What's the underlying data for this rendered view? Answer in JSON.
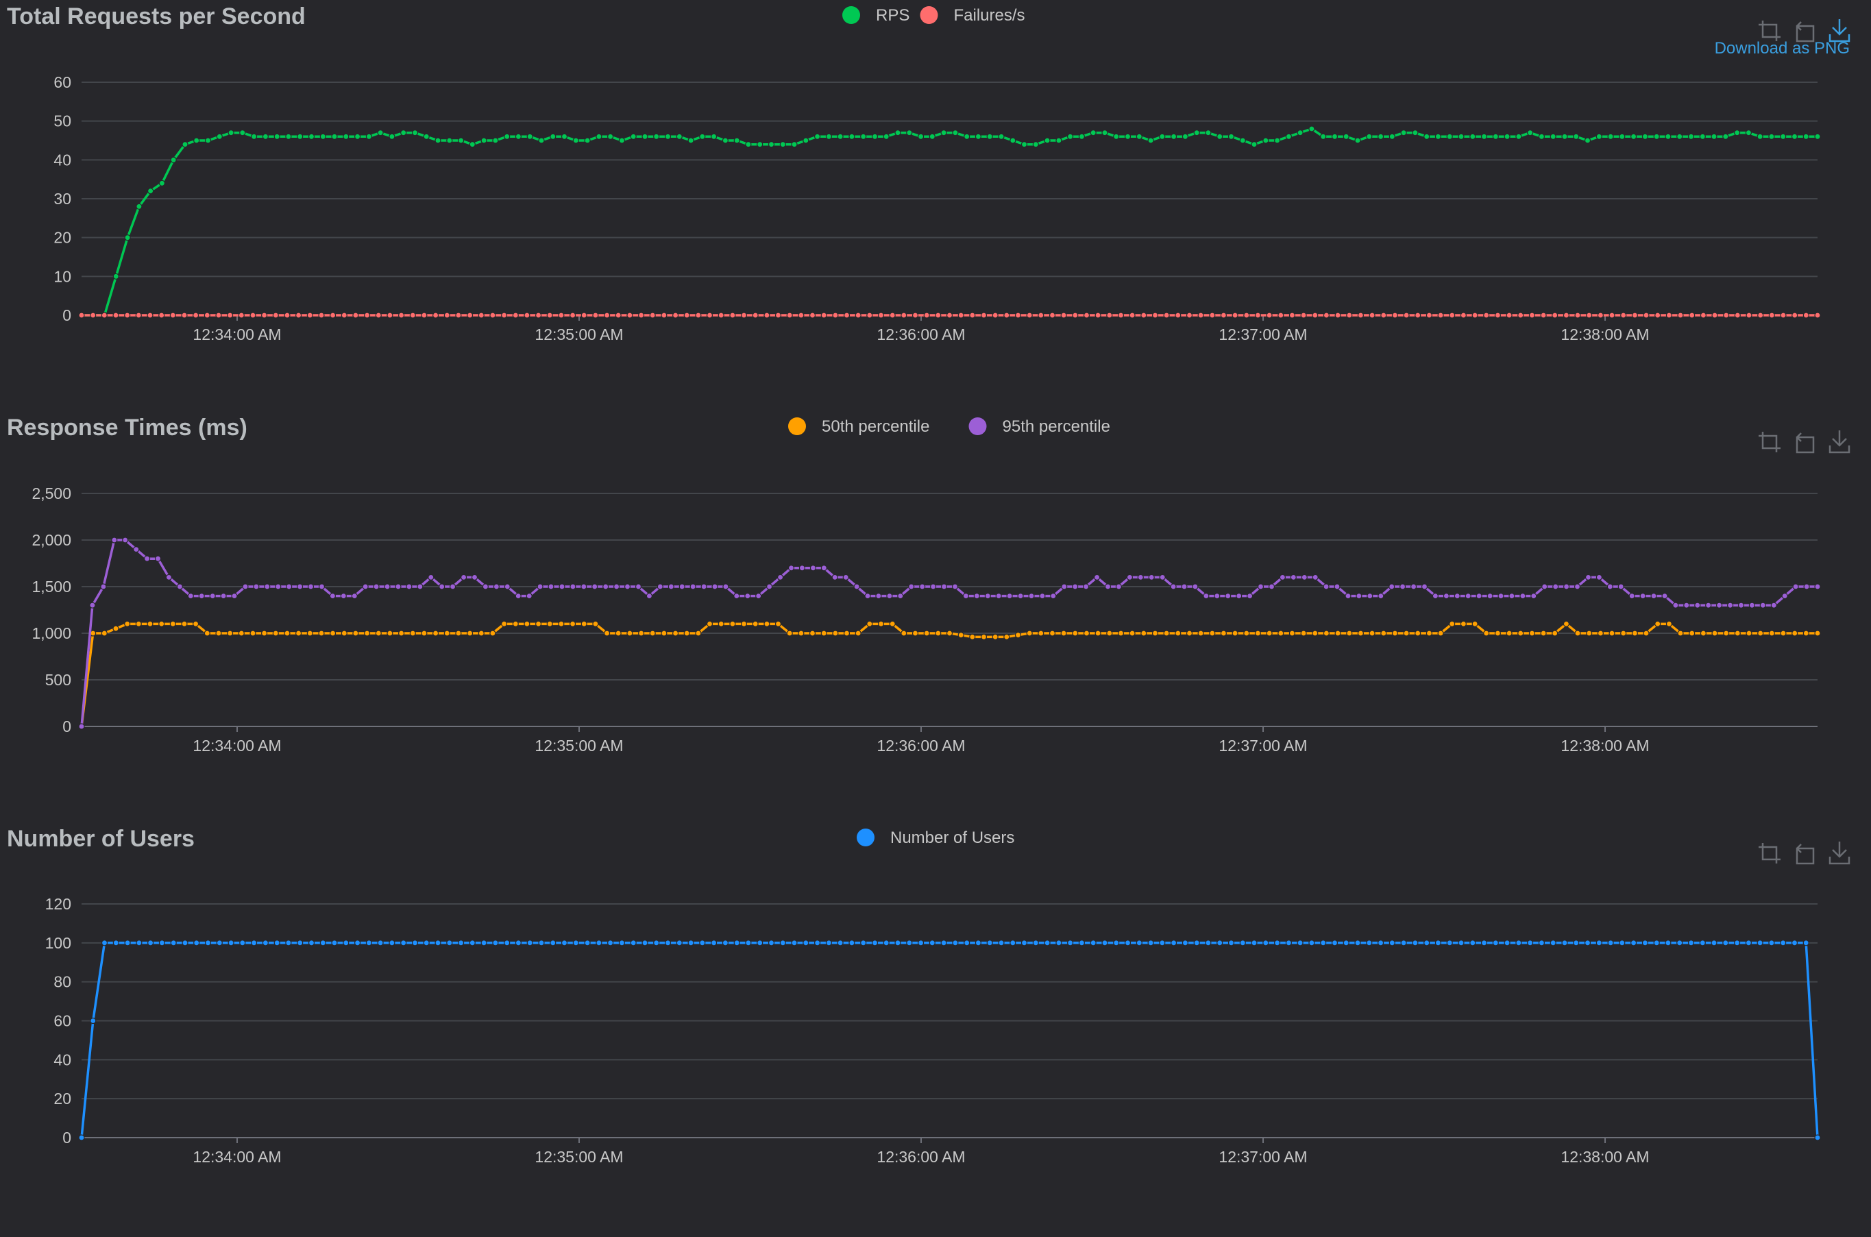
{
  "colors": {
    "background": "#27272b",
    "title": "#b8bcbf",
    "axis_text": "#c8c8c8",
    "grid": "#43464b",
    "axis_line": "#6e7079",
    "toolbox": "#6b6e74",
    "toolbox_active": "#3a9fe0"
  },
  "toolbox": {
    "zoom_icon": "zoom-icon",
    "restore_icon": "restore-icon",
    "download_icon": "download-icon",
    "download_tooltip": "Download as PNG"
  },
  "charts": [
    {
      "id": "rps",
      "title": "Total Requests per Second",
      "y_ticks": [
        "60",
        "50",
        "40",
        "30",
        "20",
        "10",
        "0"
      ],
      "x_ticks": [
        "12:34:00 AM",
        "12:35:00 AM",
        "12:36:00 AM",
        "12:37:00 AM",
        "12:38:00 AM"
      ],
      "legend": [
        {
          "label": "RPS",
          "color": "#00c853"
        },
        {
          "label": "Failures/s",
          "color": "#ff6d6d"
        }
      ]
    },
    {
      "id": "response",
      "title": "Response Times (ms)",
      "y_ticks": [
        "2,500",
        "2,000",
        "1,500",
        "1,000",
        "500",
        "0"
      ],
      "x_ticks": [
        "12:34:00 AM",
        "12:35:00 AM",
        "12:36:00 AM",
        "12:37:00 AM",
        "12:38:00 AM"
      ],
      "legend": [
        {
          "label": "50th percentile",
          "color": "#ffa000"
        },
        {
          "label": "95th percentile",
          "color": "#9c5fd6"
        }
      ]
    },
    {
      "id": "users",
      "title": "Number of Users",
      "y_ticks": [
        "120",
        "100",
        "80",
        "60",
        "40",
        "20",
        "0"
      ],
      "x_ticks": [
        "12:34:00 AM",
        "12:35:00 AM",
        "12:36:00 AM",
        "12:37:00 AM",
        "12:38:00 AM"
      ],
      "legend": [
        {
          "label": "Number of Users",
          "color": "#1e90ff"
        }
      ]
    }
  ],
  "chart_data": [
    {
      "type": "line",
      "title": "Total Requests per Second",
      "x_start": "12:33:33 AM",
      "x_interval_seconds": 2,
      "x_ticks": [
        "12:34:00 AM",
        "12:35:00 AM",
        "12:36:00 AM",
        "12:37:00 AM",
        "12:38:00 AM"
      ],
      "ylim": [
        0,
        60
      ],
      "grid": true,
      "legend_position": "top-center",
      "series": [
        {
          "name": "RPS",
          "color": "#00c853",
          "values": [
            0,
            0,
            0,
            10,
            20,
            28,
            32,
            34,
            40,
            44,
            45,
            45,
            46,
            47,
            47,
            46,
            46,
            46,
            46,
            46,
            46,
            46,
            46,
            46,
            46,
            46,
            47,
            46,
            47,
            47,
            46,
            45,
            45,
            45,
            44,
            45,
            45,
            46,
            46,
            46,
            45,
            46,
            46,
            45,
            45,
            46,
            46,
            45,
            46,
            46,
            46,
            46,
            46,
            45,
            46,
            46,
            45,
            45,
            44,
            44,
            44,
            44,
            44,
            45,
            46,
            46,
            46,
            46,
            46,
            46,
            46,
            47,
            47,
            46,
            46,
            47,
            47,
            46,
            46,
            46,
            46,
            45,
            44,
            44,
            45,
            45,
            46,
            46,
            47,
            47,
            46,
            46,
            46,
            45,
            46,
            46,
            46,
            47,
            47,
            46,
            46,
            45,
            44,
            45,
            45,
            46,
            47,
            48,
            46,
            46,
            46,
            45,
            46,
            46,
            46,
            47,
            47,
            46,
            46,
            46,
            46,
            46,
            46,
            46,
            46,
            46,
            47,
            46,
            46,
            46,
            46,
            45,
            46,
            46,
            46,
            46,
            46,
            46,
            46,
            46,
            46,
            46,
            46,
            46,
            47,
            47,
            46,
            46,
            46,
            46,
            46,
            46
          ]
        },
        {
          "name": "Failures/s",
          "color": "#ff6d6d",
          "values": [
            0,
            0,
            0,
            0,
            0,
            0,
            0,
            0,
            0,
            0,
            0,
            0,
            0,
            0,
            0,
            0,
            0,
            0,
            0,
            0,
            0,
            0,
            0,
            0,
            0,
            0,
            0,
            0,
            0,
            0,
            0,
            0,
            0,
            0,
            0,
            0,
            0,
            0,
            0,
            0,
            0,
            0,
            0,
            0,
            0,
            0,
            0,
            0,
            0,
            0,
            0,
            0,
            0,
            0,
            0,
            0,
            0,
            0,
            0,
            0,
            0,
            0,
            0,
            0,
            0,
            0,
            0,
            0,
            0,
            0,
            0,
            0,
            0,
            0,
            0,
            0,
            0,
            0,
            0,
            0,
            0,
            0,
            0,
            0,
            0,
            0,
            0,
            0,
            0,
            0,
            0,
            0,
            0,
            0,
            0,
            0,
            0,
            0,
            0,
            0,
            0,
            0,
            0,
            0,
            0,
            0,
            0,
            0,
            0,
            0,
            0,
            0,
            0,
            0,
            0,
            0,
            0,
            0,
            0,
            0,
            0,
            0,
            0,
            0,
            0,
            0,
            0,
            0,
            0,
            0,
            0,
            0,
            0,
            0,
            0,
            0,
            0,
            0,
            0,
            0,
            0,
            0,
            0,
            0,
            0,
            0,
            0,
            0,
            0,
            0,
            0,
            0,
            0
          ]
        }
      ]
    },
    {
      "type": "line",
      "title": "Response Times (ms)",
      "x_start": "12:33:33 AM",
      "x_interval_seconds": 2,
      "x_ticks": [
        "12:34:00 AM",
        "12:35:00 AM",
        "12:36:00 AM",
        "12:37:00 AM",
        "12:38:00 AM"
      ],
      "ylim": [
        0,
        2500
      ],
      "grid": true,
      "legend_position": "top-center",
      "series": [
        {
          "name": "50th percentile",
          "color": "#ffa000",
          "values": [
            0,
            1000,
            1000,
            1050,
            1100,
            1100,
            1100,
            1100,
            1100,
            1100,
            1100,
            1000,
            1000,
            1000,
            1000,
            1000,
            1000,
            1000,
            1000,
            1000,
            1000,
            1000,
            1000,
            1000,
            1000,
            1000,
            1000,
            1000,
            1000,
            1000,
            1000,
            1000,
            1000,
            1000,
            1000,
            1000,
            1000,
            1100,
            1100,
            1100,
            1100,
            1100,
            1100,
            1100,
            1100,
            1100,
            1000,
            1000,
            1000,
            1000,
            1000,
            1000,
            1000,
            1000,
            1000,
            1100,
            1100,
            1100,
            1100,
            1100,
            1100,
            1100,
            1000,
            1000,
            1000,
            1000,
            1000,
            1000,
            1000,
            1100,
            1100,
            1100,
            1000,
            1000,
            1000,
            1000,
            1000,
            980,
            960,
            960,
            960,
            960,
            980,
            1000,
            1000,
            1000,
            1000,
            1000,
            1000,
            1000,
            1000,
            1000,
            1000,
            1000,
            1000,
            1000,
            1000,
            1000,
            1000,
            1000,
            1000,
            1000,
            1000,
            1000,
            1000,
            1000,
            1000,
            1000,
            1000,
            1000,
            1000,
            1000,
            1000,
            1000,
            1000,
            1000,
            1000,
            1000,
            1000,
            1000,
            1100,
            1100,
            1100,
            1000,
            1000,
            1000,
            1000,
            1000,
            1000,
            1000,
            1100,
            1000,
            1000,
            1000,
            1000,
            1000,
            1000,
            1000,
            1100,
            1100,
            1000,
            1000,
            1000,
            1000,
            1000,
            1000,
            1000,
            1000,
            1000,
            1000,
            1000,
            1000,
            1000
          ]
        },
        {
          "name": "95th percentile",
          "color": "#9c5fd6",
          "values": [
            0,
            1300,
            1500,
            2000,
            2000,
            1900,
            1800,
            1800,
            1600,
            1500,
            1400,
            1400,
            1400,
            1400,
            1400,
            1500,
            1500,
            1500,
            1500,
            1500,
            1500,
            1500,
            1500,
            1400,
            1400,
            1400,
            1500,
            1500,
            1500,
            1500,
            1500,
            1500,
            1600,
            1500,
            1500,
            1600,
            1600,
            1500,
            1500,
            1500,
            1400,
            1400,
            1500,
            1500,
            1500,
            1500,
            1500,
            1500,
            1500,
            1500,
            1500,
            1500,
            1400,
            1500,
            1500,
            1500,
            1500,
            1500,
            1500,
            1500,
            1400,
            1400,
            1400,
            1500,
            1600,
            1700,
            1700,
            1700,
            1700,
            1600,
            1600,
            1500,
            1400,
            1400,
            1400,
            1400,
            1500,
            1500,
            1500,
            1500,
            1500,
            1400,
            1400,
            1400,
            1400,
            1400,
            1400,
            1400,
            1400,
            1400,
            1500,
            1500,
            1500,
            1600,
            1500,
            1500,
            1600,
            1600,
            1600,
            1600,
            1500,
            1500,
            1500,
            1400,
            1400,
            1400,
            1400,
            1400,
            1500,
            1500,
            1600,
            1600,
            1600,
            1600,
            1500,
            1500,
            1400,
            1400,
            1400,
            1400,
            1500,
            1500,
            1500,
            1500,
            1400,
            1400,
            1400,
            1400,
            1400,
            1400,
            1400,
            1400,
            1400,
            1400,
            1500,
            1500,
            1500,
            1500,
            1600,
            1600,
            1500,
            1500,
            1400,
            1400,
            1400,
            1400,
            1300,
            1300,
            1300,
            1300,
            1300,
            1300,
            1300,
            1300,
            1300,
            1300,
            1400,
            1500,
            1500,
            1500
          ]
        }
      ]
    },
    {
      "type": "line",
      "title": "Number of Users",
      "x_start": "12:33:33 AM",
      "x_interval_seconds": 2,
      "x_ticks": [
        "12:34:00 AM",
        "12:35:00 AM",
        "12:36:00 AM",
        "12:37:00 AM",
        "12:38:00 AM"
      ],
      "ylim": [
        0,
        120
      ],
      "grid": true,
      "legend_position": "top-center",
      "series": [
        {
          "name": "Number of Users",
          "color": "#1e90ff",
          "values": [
            0,
            60,
            100,
            100,
            100,
            100,
            100,
            100,
            100,
            100,
            100,
            100,
            100,
            100,
            100,
            100,
            100,
            100,
            100,
            100,
            100,
            100,
            100,
            100,
            100,
            100,
            100,
            100,
            100,
            100,
            100,
            100,
            100,
            100,
            100,
            100,
            100,
            100,
            100,
            100,
            100,
            100,
            100,
            100,
            100,
            100,
            100,
            100,
            100,
            100,
            100,
            100,
            100,
            100,
            100,
            100,
            100,
            100,
            100,
            100,
            100,
            100,
            100,
            100,
            100,
            100,
            100,
            100,
            100,
            100,
            100,
            100,
            100,
            100,
            100,
            100,
            100,
            100,
            100,
            100,
            100,
            100,
            100,
            100,
            100,
            100,
            100,
            100,
            100,
            100,
            100,
            100,
            100,
            100,
            100,
            100,
            100,
            100,
            100,
            100,
            100,
            100,
            100,
            100,
            100,
            100,
            100,
            100,
            100,
            100,
            100,
            100,
            100,
            100,
            100,
            100,
            100,
            100,
            100,
            100,
            100,
            100,
            100,
            100,
            100,
            100,
            100,
            100,
            100,
            100,
            100,
            100,
            100,
            100,
            100,
            100,
            100,
            100,
            100,
            100,
            100,
            100,
            100,
            100,
            100,
            100,
            100,
            100,
            100,
            100,
            100,
            0
          ]
        }
      ]
    }
  ]
}
